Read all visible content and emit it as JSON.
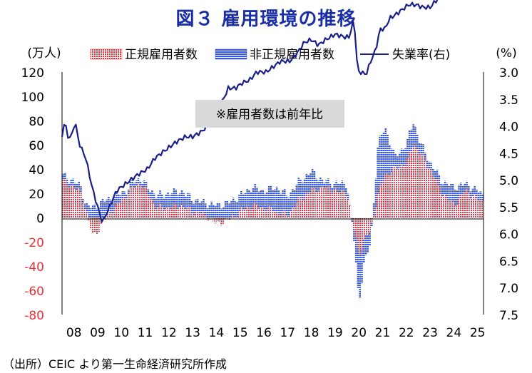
{
  "title": "図３ 雇用環境の推移",
  "source": "（出所）CEIC より第一生命経済研究所作成",
  "colors": {
    "regular": "#e8323c",
    "nonregular": "#3556e6",
    "unemp": "#1b1f8a",
    "title": "#1a2fa6"
  },
  "chart_data": {
    "type": "bar+line",
    "left_axis_unit": "(万人)",
    "right_axis_unit": "(%)",
    "left_ylim": [
      -80,
      120
    ],
    "left_ticks": [
      "120",
      "100",
      "80",
      "60",
      "40",
      "20",
      "0",
      "-20",
      "-40",
      "-60",
      "-80"
    ],
    "right_ylim_inverted": [
      3.0,
      7.5
    ],
    "right_ticks": [
      "3.0",
      "3.5",
      "4.0",
      "4.5",
      "5.0",
      "5.5",
      "6.0",
      "6.5",
      "7.0",
      "7.5"
    ],
    "x_ticks": [
      "08",
      "09",
      "10",
      "11",
      "12",
      "13",
      "14",
      "15",
      "16",
      "17",
      "18",
      "19",
      "20",
      "21",
      "22",
      "23",
      "24",
      "25"
    ],
    "annotation": "※雇用者数は前年比",
    "legend": [
      "正規雇用者数",
      "非正規雇用者数",
      "失業率(右)"
    ],
    "x_start": 2008.0,
    "x_end": 2025.75,
    "series": [
      {
        "name": "正規雇用者数",
        "axis": "left",
        "points": [
          [
            2008.0,
            30
          ],
          [
            2008.5,
            25
          ],
          [
            2008.8,
            20
          ],
          [
            2009.0,
            5
          ],
          [
            2009.3,
            -15
          ],
          [
            2009.6,
            -8
          ],
          [
            2009.9,
            2
          ],
          [
            2010.3,
            10
          ],
          [
            2010.7,
            18
          ],
          [
            2011.0,
            25
          ],
          [
            2011.3,
            28
          ],
          [
            2011.6,
            20
          ],
          [
            2012.0,
            8
          ],
          [
            2012.5,
            8
          ],
          [
            2013.0,
            10
          ],
          [
            2013.5,
            5
          ],
          [
            2014.0,
            2
          ],
          [
            2014.5,
            -5
          ],
          [
            2015.0,
            -2
          ],
          [
            2015.5,
            5
          ],
          [
            2016.0,
            10
          ],
          [
            2016.5,
            8
          ],
          [
            2017.0,
            5
          ],
          [
            2017.5,
            2
          ],
          [
            2018.0,
            15
          ],
          [
            2018.5,
            22
          ],
          [
            2019.0,
            25
          ],
          [
            2019.5,
            22
          ],
          [
            2020.0,
            20
          ],
          [
            2020.3,
            -10
          ],
          [
            2020.5,
            -30
          ],
          [
            2020.7,
            -20
          ],
          [
            2021.0,
            -10
          ],
          [
            2021.3,
            20
          ],
          [
            2021.6,
            35
          ],
          [
            2022.0,
            40
          ],
          [
            2022.5,
            45
          ],
          [
            2022.8,
            60
          ],
          [
            2023.0,
            55
          ],
          [
            2023.5,
            40
          ],
          [
            2024.0,
            20
          ],
          [
            2024.5,
            10
          ],
          [
            2025.0,
            22
          ],
          [
            2025.5,
            15
          ],
          [
            2025.75,
            12
          ]
        ]
      },
      {
        "name": "非正規雇用者数",
        "axis": "left",
        "points": [
          [
            2008.0,
            35
          ],
          [
            2008.5,
            30
          ],
          [
            2008.8,
            25
          ],
          [
            2009.0,
            10
          ],
          [
            2009.3,
            8
          ],
          [
            2009.6,
            12
          ],
          [
            2009.9,
            15
          ],
          [
            2010.3,
            18
          ],
          [
            2010.7,
            22
          ],
          [
            2011.0,
            30
          ],
          [
            2011.3,
            32
          ],
          [
            2011.6,
            25
          ],
          [
            2012.0,
            18
          ],
          [
            2012.5,
            20
          ],
          [
            2013.0,
            22
          ],
          [
            2013.5,
            15
          ],
          [
            2014.0,
            12
          ],
          [
            2014.5,
            10
          ],
          [
            2015.0,
            12
          ],
          [
            2015.5,
            18
          ],
          [
            2016.0,
            25
          ],
          [
            2016.5,
            22
          ],
          [
            2017.0,
            25
          ],
          [
            2017.5,
            18
          ],
          [
            2018.0,
            30
          ],
          [
            2018.5,
            38
          ],
          [
            2019.0,
            30
          ],
          [
            2019.5,
            28
          ],
          [
            2020.0,
            28
          ],
          [
            2020.3,
            -20
          ],
          [
            2020.5,
            -70
          ],
          [
            2020.7,
            -40
          ],
          [
            2021.0,
            -20
          ],
          [
            2021.3,
            60
          ],
          [
            2021.6,
            75
          ],
          [
            2022.0,
            50
          ],
          [
            2022.5,
            60
          ],
          [
            2022.8,
            80
          ],
          [
            2023.0,
            65
          ],
          [
            2023.5,
            45
          ],
          [
            2024.0,
            30
          ],
          [
            2024.5,
            25
          ],
          [
            2025.0,
            28
          ],
          [
            2025.5,
            22
          ],
          [
            2025.75,
            18
          ]
        ]
      },
      {
        "name": "失業率(右)",
        "axis": "right",
        "points": [
          [
            2008.0,
            4.2
          ],
          [
            2008.1,
            3.9
          ],
          [
            2008.25,
            4.2
          ],
          [
            2008.4,
            4.2
          ],
          [
            2008.55,
            3.9
          ],
          [
            2008.7,
            4.3
          ],
          [
            2009.0,
            4.6
          ],
          [
            2009.3,
            5.2
          ],
          [
            2009.5,
            5.5
          ],
          [
            2009.7,
            5.8
          ],
          [
            2010.0,
            5.5
          ],
          [
            2010.3,
            5.2
          ],
          [
            2010.6,
            5.1
          ],
          [
            2010.9,
            5.0
          ],
          [
            2011.2,
            4.9
          ],
          [
            2011.6,
            4.8
          ],
          [
            2011.9,
            4.6
          ],
          [
            2012.2,
            4.5
          ],
          [
            2012.5,
            4.4
          ],
          [
            2012.8,
            4.3
          ],
          [
            2013.2,
            4.2
          ],
          [
            2013.5,
            4.2
          ],
          [
            2013.9,
            4.1
          ],
          [
            2014.2,
            3.95
          ],
          [
            2014.5,
            3.7
          ],
          [
            2014.7,
            3.6
          ],
          [
            2015.0,
            3.3
          ],
          [
            2015.3,
            3.3
          ],
          [
            2015.6,
            3.2
          ],
          [
            2015.9,
            3.15
          ],
          [
            2016.2,
            3.0
          ],
          [
            2016.6,
            3.0
          ],
          [
            2016.9,
            2.9
          ],
          [
            2017.2,
            2.8
          ],
          [
            2017.6,
            2.8
          ],
          [
            2017.9,
            2.65
          ],
          [
            2018.2,
            2.45
          ],
          [
            2018.5,
            2.4
          ],
          [
            2018.8,
            2.5
          ],
          [
            2019.1,
            2.4
          ],
          [
            2019.5,
            2.3
          ],
          [
            2019.9,
            2.35
          ],
          [
            2020.1,
            2.35
          ],
          [
            2020.3,
            2.0
          ],
          [
            2020.45,
            3.0
          ],
          [
            2020.6,
            3.0
          ],
          [
            2020.8,
            3.05
          ],
          [
            2021.0,
            2.8
          ],
          [
            2021.2,
            2.6
          ],
          [
            2021.4,
            2.2
          ],
          [
            2021.6,
            2.2
          ],
          [
            2021.8,
            2.0
          ],
          [
            2022.0,
            1.95
          ],
          [
            2022.3,
            1.85
          ],
          [
            2022.6,
            1.75
          ],
          [
            2022.9,
            1.75
          ],
          [
            2023.2,
            1.8
          ],
          [
            2023.5,
            1.8
          ],
          [
            2023.8,
            1.65
          ],
          [
            2024.2,
            1.55
          ],
          [
            2024.5,
            1.5
          ],
          [
            2024.8,
            1.45
          ],
          [
            2025.0,
            1.4
          ],
          [
            2025.3,
            1.45
          ],
          [
            2025.5,
            1.45
          ],
          [
            2025.75,
            1.4
          ]
        ]
      }
    ]
  }
}
